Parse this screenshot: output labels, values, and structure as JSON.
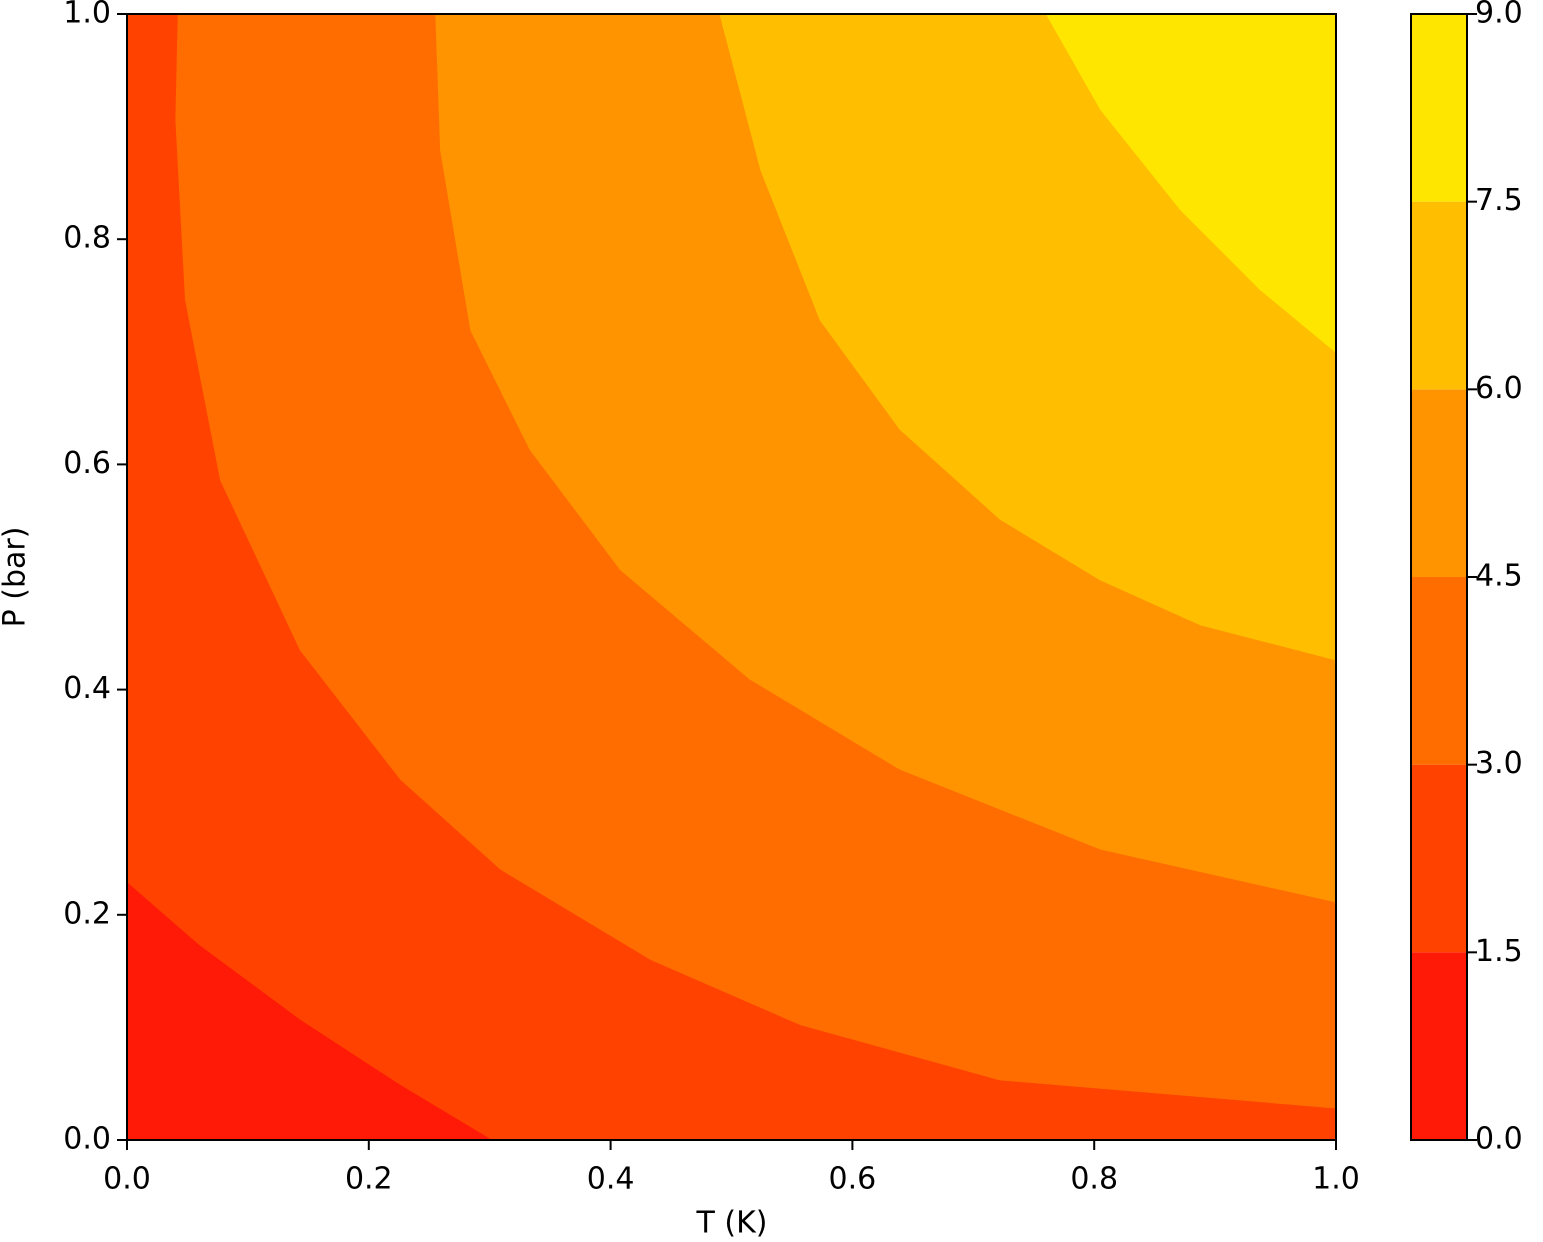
{
  "chart_data": {
    "type": "contour",
    "xlabel": "T (K)",
    "ylabel": "P (bar)",
    "xlim": [
      0,
      1
    ],
    "ylim": [
      0,
      1
    ],
    "xticks": [
      {
        "value": 0,
        "label": "0.0"
      },
      {
        "value": 0.2,
        "label": "0.2"
      },
      {
        "value": 0.4,
        "label": "0.4"
      },
      {
        "value": 0.6,
        "label": "0.6"
      },
      {
        "value": 0.8,
        "label": "0.8"
      },
      {
        "value": 1,
        "label": "1.0"
      }
    ],
    "yticks": [
      {
        "value": 0,
        "label": "0.0"
      },
      {
        "value": 0.2,
        "label": "0.2"
      },
      {
        "value": 0.4,
        "label": "0.4"
      },
      {
        "value": 0.6,
        "label": "0.6"
      },
      {
        "value": 0.8,
        "label": "0.8"
      },
      {
        "value": 1,
        "label": "1.0"
      }
    ],
    "levels": [
      {
        "value": 0,
        "label": "0.0"
      },
      {
        "value": 1.5,
        "label": "1.5"
      },
      {
        "value": 3,
        "label": "3.0"
      },
      {
        "value": 4.5,
        "label": "4.5"
      },
      {
        "value": 6,
        "label": "6.0"
      },
      {
        "value": 7.5,
        "label": "7.5"
      },
      {
        "value": 9,
        "label": "9.0"
      }
    ],
    "colors": [
      "#ff1a07",
      "#ff4200",
      "#ff6d00",
      "#ff9400",
      "#ffbf00",
      "#ffe600"
    ],
    "contours": [
      {
        "level": 1.5,
        "x": [
          0,
          0.06,
          0.143,
          0.226,
          0.302
        ],
        "y": [
          0.229,
          0.173,
          0.107,
          0.049,
          0
        ]
      },
      {
        "level": 3,
        "x": [
          0.042,
          0.04,
          0.048,
          0.077,
          0.143,
          0.226,
          0.309,
          0.433,
          0.557,
          0.722,
          1
        ],
        "y": [
          1,
          0.906,
          0.746,
          0.586,
          0.435,
          0.32,
          0.24,
          0.16,
          0.102,
          0.053,
          0.028
        ]
      },
      {
        "level": 4.5,
        "x": [
          0.255,
          0.259,
          0.284,
          0.333,
          0.408,
          0.515,
          0.639,
          0.805,
          1
        ],
        "y": [
          1,
          0.879,
          0.719,
          0.613,
          0.506,
          0.409,
          0.329,
          0.258,
          0.211
        ]
      },
      {
        "level": 6,
        "x": [
          0.49,
          0.524,
          0.573,
          0.639,
          0.722,
          0.805,
          0.888,
          1
        ],
        "y": [
          1,
          0.861,
          0.728,
          0.631,
          0.551,
          0.497,
          0.457,
          0.426
        ]
      },
      {
        "level": 7.5,
        "x": [
          0.76,
          0.805,
          0.871,
          0.937,
          1
        ],
        "y": [
          1,
          0.915,
          0.826,
          0.755,
          0.699
        ]
      }
    ]
  }
}
